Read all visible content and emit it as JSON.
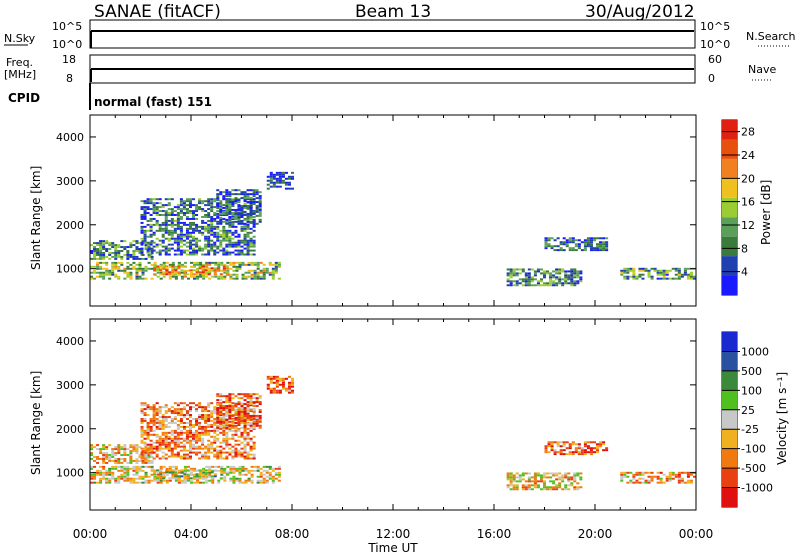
{
  "header": {
    "site": "SANAE (fitACF)",
    "beam": "Beam 13",
    "date": "30/Aug/2012"
  },
  "strips": {
    "nsky": {
      "label": "N.Sky",
      "ticks": [
        "10^5",
        "10^0"
      ]
    },
    "nsearch": {
      "label": "N.Search",
      "ticks": [
        "10^5",
        "10^0"
      ]
    },
    "freq": {
      "label_line1": "Freq.",
      "label_line2": "[MHz]",
      "ticks": [
        "18",
        "8"
      ]
    },
    "nave": {
      "label": "Nave",
      "ticks": [
        "60",
        "0"
      ]
    },
    "cpid": {
      "label": "CPID",
      "text": "normal (fast) 151"
    }
  },
  "colors": {
    "power_scale": [
      "#1a1aff",
      "#2040b0",
      "#3a7a3a",
      "#5aa05a",
      "#9ccc33",
      "#f0c020",
      "#f08020",
      "#e85010",
      "#e02010"
    ],
    "velocity_scale": [
      "#e01010",
      "#e84010",
      "#f07a10",
      "#f0b020",
      "#c8c8c8",
      "#50c020",
      "#3a8a3a",
      "#2a50a0",
      "#1a2ad0"
    ]
  },
  "chart_data": [
    {
      "type": "heatmap",
      "panel": "power",
      "xlabel": "Time UT",
      "ylabel": "Slant Range [km]",
      "x_ticks": [
        "00:00",
        "04:00",
        "08:00",
        "12:00",
        "16:00",
        "20:00",
        "00:00"
      ],
      "xlim_hours": [
        0,
        24
      ],
      "y_ticks": [
        1000,
        2000,
        3000,
        4000
      ],
      "ylim": [
        150,
        4500
      ],
      "colorbar": {
        "label": "Power [dB]",
        "ticks": [
          4,
          8,
          12,
          16,
          20,
          24,
          28
        ],
        "range": [
          0,
          30
        ]
      },
      "echo_regions": [
        {
          "t0": 0.0,
          "t1": 7.5,
          "r0": 750,
          "r1": 1150,
          "level": 0.45
        },
        {
          "t0": 2.5,
          "t1": 5.5,
          "r0": 850,
          "r1": 1050,
          "level": 0.7
        },
        {
          "t0": 0.0,
          "t1": 2.5,
          "r0": 1200,
          "r1": 1650,
          "level": 0.3
        },
        {
          "t0": 2.0,
          "t1": 6.5,
          "r0": 1300,
          "r1": 2600,
          "level": 0.25
        },
        {
          "t0": 5.0,
          "t1": 6.8,
          "r0": 2000,
          "r1": 2800,
          "level": 0.2
        },
        {
          "t0": 7.0,
          "t1": 8.0,
          "r0": 2800,
          "r1": 3200,
          "level": 0.1
        },
        {
          "t0": 16.5,
          "t1": 19.5,
          "r0": 600,
          "r1": 1000,
          "level": 0.3
        },
        {
          "t0": 18.0,
          "t1": 20.5,
          "r0": 1400,
          "r1": 1700,
          "level": 0.2
        },
        {
          "t0": 21.0,
          "t1": 24.0,
          "r0": 750,
          "r1": 1000,
          "level": 0.35
        }
      ]
    },
    {
      "type": "heatmap",
      "panel": "velocity",
      "xlabel": "Time UT",
      "ylabel": "Slant Range [km]",
      "x_ticks": [
        "00:00",
        "04:00",
        "08:00",
        "12:00",
        "16:00",
        "20:00",
        "00:00"
      ],
      "xlim_hours": [
        0,
        24
      ],
      "y_ticks": [
        1000,
        2000,
        3000,
        4000
      ],
      "ylim": [
        150,
        4500
      ],
      "colorbar": {
        "label": "Velocity [m s⁻¹]",
        "ticks": [
          "1000",
          "500",
          "100",
          "25",
          "-25",
          "-100",
          "-500",
          "-1000"
        ]
      },
      "echo_regions": [
        {
          "t0": 0.0,
          "t1": 7.5,
          "r0": 750,
          "r1": 1150,
          "level": 0.45
        },
        {
          "t0": 2.5,
          "t1": 5.5,
          "r0": 850,
          "r1": 1050,
          "level": 0.55
        },
        {
          "t0": 0.0,
          "t1": 2.5,
          "r0": 1200,
          "r1": 1650,
          "level": 0.4
        },
        {
          "t0": 2.0,
          "t1": 6.5,
          "r0": 1300,
          "r1": 2600,
          "level": 0.3
        },
        {
          "t0": 5.0,
          "t1": 6.8,
          "r0": 2000,
          "r1": 2800,
          "level": 0.25
        },
        {
          "t0": 7.0,
          "t1": 8.0,
          "r0": 2800,
          "r1": 3200,
          "level": 0.2
        },
        {
          "t0": 16.5,
          "t1": 19.5,
          "r0": 600,
          "r1": 1000,
          "level": 0.4
        },
        {
          "t0": 18.0,
          "t1": 20.5,
          "r0": 1400,
          "r1": 1700,
          "level": 0.25
        },
        {
          "t0": 21.0,
          "t1": 24.0,
          "r0": 750,
          "r1": 1000,
          "level": 0.35
        }
      ]
    }
  ]
}
